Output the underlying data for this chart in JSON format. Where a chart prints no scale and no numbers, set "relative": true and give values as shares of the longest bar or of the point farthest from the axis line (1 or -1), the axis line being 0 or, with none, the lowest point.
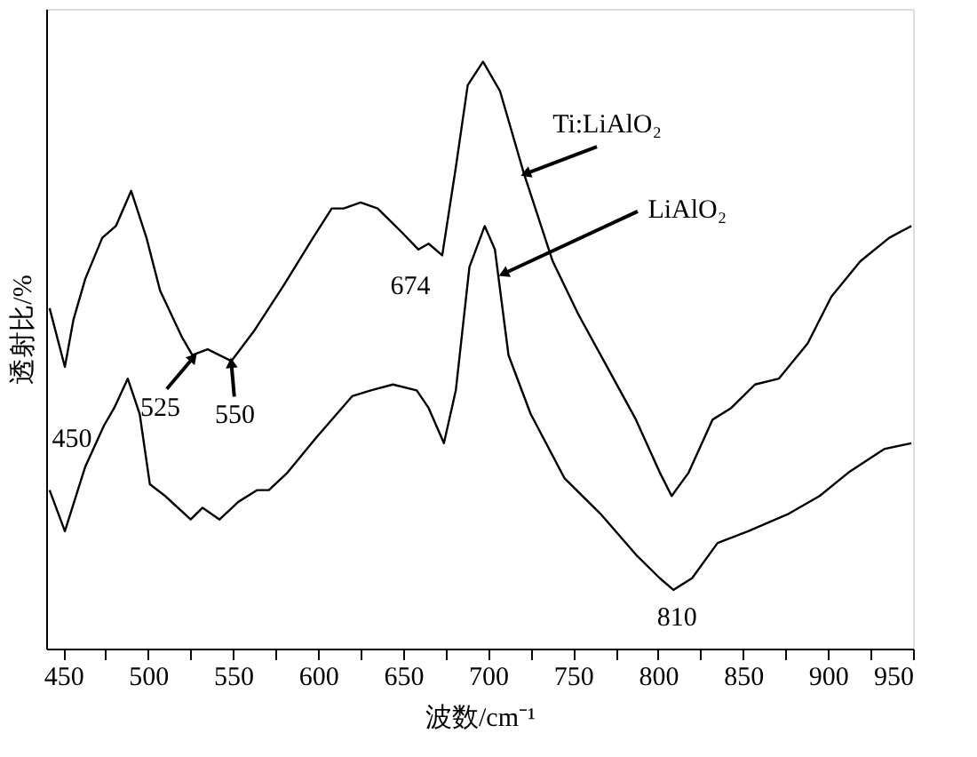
{
  "chart_data": {
    "type": "line",
    "relative": true,
    "xlabel": "波数/cm⁻¹",
    "ylabel": "透射比/%",
    "xlim": [
      440,
      950
    ],
    "xticks": [
      450,
      {
        "value": 475,
        "label": null
      },
      500,
      {
        "value": 525,
        "label": null
      },
      550,
      {
        "value": 575,
        "label": null
      },
      600,
      {
        "value": 625,
        "label": null
      },
      650,
      {
        "value": 675,
        "label": null
      },
      700,
      {
        "value": 725,
        "label": null
      },
      750,
      {
        "value": 775,
        "label": null
      },
      800,
      {
        "value": 825,
        "label": null
      },
      850,
      {
        "value": 875,
        "label": null
      },
      900,
      {
        "value": 925,
        "label": null
      },
      950
    ],
    "grid": false,
    "legend": false,
    "line_style": "solid",
    "marker": "none",
    "series": [
      {
        "name": "Ti:LiAlO₂",
        "color": "#000000",
        "x": [
          442,
          451,
          456,
          463,
          473,
          481,
          490,
          499,
          507,
          520,
          526,
          535,
          549,
          562,
          580,
          597,
          608,
          615,
          625,
          635,
          649,
          659,
          665,
          673,
          681,
          688,
          697,
          707,
          721,
          738,
          753,
          770,
          787,
          801,
          808,
          818,
          832,
          843,
          857,
          871,
          888,
          902,
          919,
          936,
          949
        ],
        "values": [
          0.58,
          0.48,
          0.56,
          0.63,
          0.7,
          0.72,
          0.78,
          0.7,
          0.61,
          0.53,
          0.5,
          0.51,
          0.49,
          0.54,
          0.62,
          0.7,
          0.75,
          0.75,
          0.76,
          0.75,
          0.71,
          0.68,
          0.69,
          0.67,
          0.82,
          0.96,
          1.0,
          0.95,
          0.81,
          0.66,
          0.57,
          0.48,
          0.39,
          0.3,
          0.26,
          0.3,
          0.39,
          0.41,
          0.45,
          0.46,
          0.52,
          0.6,
          0.66,
          0.7,
          0.72
        ]
      },
      {
        "name": "LiAlO₂",
        "color": "#000000",
        "x": [
          442,
          451,
          463,
          474,
          480,
          488,
          495,
          501,
          510,
          525,
          532,
          542,
          553,
          564,
          571,
          582,
          599,
          620,
          631,
          644,
          658,
          665,
          674,
          681,
          689,
          698,
          704,
          712,
          725,
          745,
          766,
          787,
          801,
          809,
          820,
          835,
          853,
          877,
          895,
          912,
          933,
          949
        ],
        "values": [
          0.27,
          0.2,
          0.31,
          0.38,
          0.41,
          0.46,
          0.4,
          0.28,
          0.26,
          0.22,
          0.24,
          0.22,
          0.25,
          0.27,
          0.27,
          0.3,
          0.36,
          0.43,
          0.44,
          0.45,
          0.44,
          0.41,
          0.35,
          0.44,
          0.65,
          0.72,
          0.68,
          0.5,
          0.4,
          0.29,
          0.23,
          0.16,
          0.12,
          0.1,
          0.12,
          0.18,
          0.2,
          0.23,
          0.26,
          0.3,
          0.34,
          0.35
        ]
      }
    ],
    "annotations": [
      {
        "text": "450",
        "x": 451,
        "y": 0.48
      },
      {
        "text": "525",
        "x": 526,
        "y": 0.5
      },
      {
        "text": "550",
        "x": 549,
        "y": 0.49
      },
      {
        "text": "674",
        "x": 673,
        "y": 0.67
      },
      {
        "text": "810",
        "x": 809,
        "y": 0.1
      }
    ]
  }
}
